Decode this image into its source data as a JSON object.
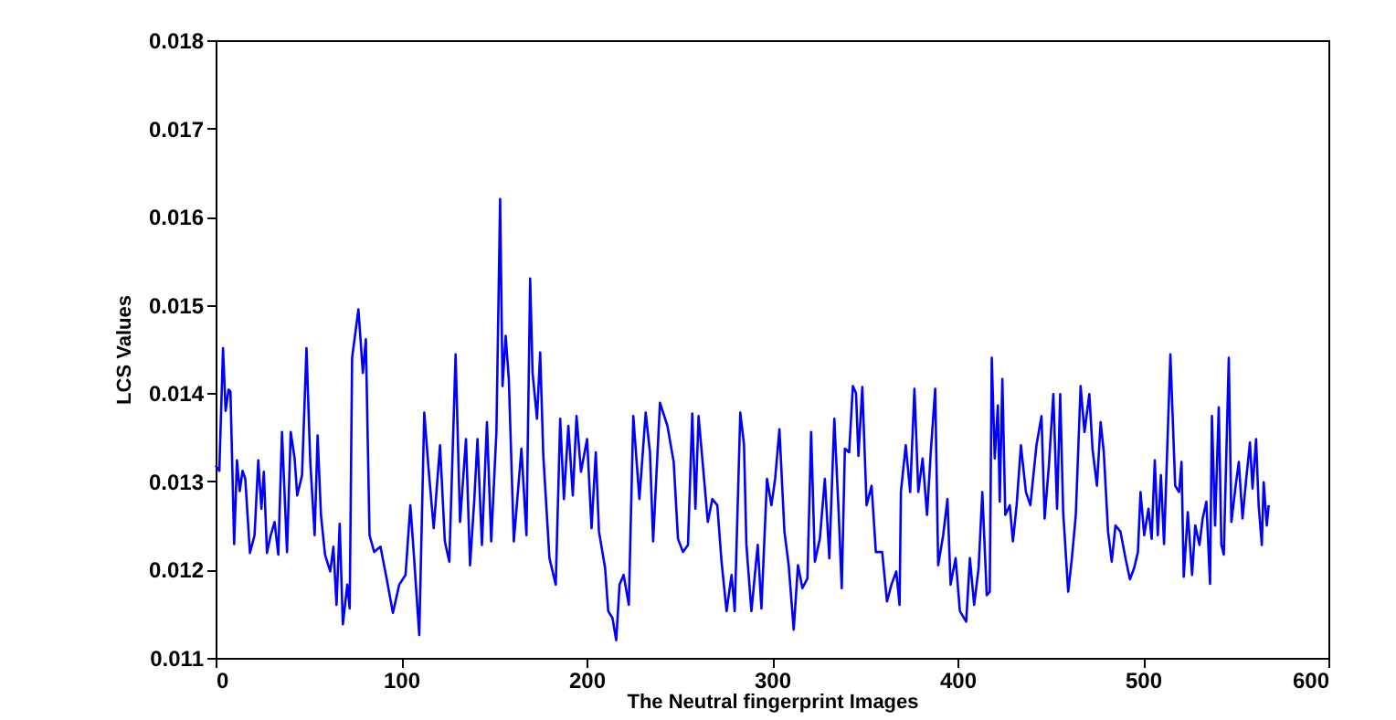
{
  "chart_data": {
    "type": "line",
    "xlabel": "The Neutral fingerprint Images",
    "ylabel": "LCS Values",
    "xlim": [
      0,
      600
    ],
    "xticks": [
      0,
      100,
      200,
      300,
      400,
      500,
      600
    ],
    "ylim": [
      0.011,
      0.018
    ],
    "yticks": [
      0.011,
      0.012,
      0.013,
      0.014,
      0.015,
      0.016,
      0.017,
      0.018
    ],
    "grid": false,
    "marker": "none",
    "line_style": "solid",
    "series": [
      {
        "color": "#0000ff",
        "x": [
          0,
          2,
          4,
          5.4,
          7,
          8,
          10,
          11.5,
          13,
          14.5,
          16,
          18.5,
          21,
          23,
          24.7,
          26,
          27.7,
          29.7,
          31.8,
          33.8,
          35.8,
          38.5,
          40.5,
          42.6,
          44,
          46.6,
          49,
          51,
          53.4,
          55,
          56.8,
          59,
          61.8,
          63.5,
          65.2,
          66.9,
          68.6,
          71,
          72.3,
          73.6,
          77,
          79.4,
          81,
          83,
          85.5,
          88.9,
          92.2,
          95.6,
          99,
          102.4,
          105,
          106.8,
          109.8,
          112.5,
          114.9,
          117.6,
          121,
          123.6,
          126,
          129.4,
          131.8,
          135,
          137.2,
          139.5,
          141.2,
          143.6,
          146.3,
          148.6,
          151.4,
          153.4,
          154.7,
          156.4,
          158.1,
          160.8,
          164.9,
          167.6,
          169.6,
          170.9,
          173.3,
          175,
          176.7,
          180,
          183.4,
          185.8,
          187.8,
          190.2,
          192.6,
          194.6,
          197,
          200.3,
          202.7,
          205,
          206.7,
          210,
          211.7,
          214,
          216,
          217.8,
          220,
          222.8,
          225.2,
          228.5,
          231.9,
          234.2,
          235.9,
          239.6,
          243.6,
          247,
          249.3,
          252,
          254.7,
          257,
          258.7,
          260.4,
          263,
          265.4,
          267.8,
          270.5,
          272.8,
          275.5,
          278.2,
          279.9,
          282.9,
          284.9,
          286.2,
          288.9,
          292.3,
          294.3,
          297.3,
          299.7,
          301.7,
          304,
          306.7,
          309,
          311.7,
          314,
          316.4,
          319.1,
          321.1,
          323.1,
          325.8,
          328.5,
          330.9,
          333.6,
          336,
          337.6,
          339.3,
          341.6,
          343.6,
          345.3,
          346.6,
          348.7,
          351,
          353.7,
          356,
          359.4,
          362,
          364.4,
          367,
          368.8,
          369.5,
          372.1,
          374.5,
          376.8,
          378.9,
          381.2,
          383.6,
          385.6,
          388,
          389.6,
          392.3,
          394.6,
          396.3,
          399,
          401.3,
          404.7,
          406.7,
          409,
          411.4,
          413.4,
          415.8,
          417.4,
          418.5,
          420.1,
          421.8,
          422.8,
          424.2,
          425.8,
          428.2,
          429.9,
          431.9,
          434.2,
          436.9,
          439.3,
          442.6,
          445.3,
          447,
          449.3,
          451.7,
          453.7,
          455.4,
          457,
          459.7,
          461.7,
          463.8,
          466.4,
          468.5,
          471.1,
          472.8,
          475.2,
          477.2,
          478.9,
          481.2,
          483.2,
          485.2,
          487.9,
          490.6,
          493,
          495.3,
          497.3,
          498.7,
          500.7,
          503,
          504.7,
          506.4,
          508,
          509.7,
          511.4,
          514.8,
          517.4,
          519.5,
          520.8,
          522,
          524.2,
          526.5,
          528.2,
          530.5,
          532.2,
          534.2,
          536.2,
          537.2,
          538.9,
          540.9,
          542.3,
          543.6,
          544.9,
          546.3,
          547.7,
          550,
          551.7,
          553.7,
          555.7,
          557.7,
          559.1,
          561,
          562.4,
          564.1,
          565.1,
          566.8,
          567.8
        ],
        "values": [
          0.01318,
          0.01312,
          0.01451,
          0.0138,
          0.01404,
          0.01402,
          0.01229,
          0.01324,
          0.01289,
          0.01312,
          0.01303,
          0.01219,
          0.01239,
          0.01324,
          0.01269,
          0.01311,
          0.01219,
          0.01239,
          0.01254,
          0.01217,
          0.01356,
          0.0122,
          0.01356,
          0.01326,
          0.01284,
          0.01307,
          0.01451,
          0.01324,
          0.01239,
          0.01352,
          0.01262,
          0.01217,
          0.01198,
          0.01226,
          0.0116,
          0.01252,
          0.01138,
          0.01183,
          0.01156,
          0.0144,
          0.01495,
          0.01423,
          0.01461,
          0.01239,
          0.0122,
          0.01226,
          0.0119,
          0.01151,
          0.01183,
          0.01194,
          0.01273,
          0.0122,
          0.01126,
          0.01378,
          0.01312,
          0.01247,
          0.01341,
          0.01232,
          0.01209,
          0.01444,
          0.01254,
          0.01348,
          0.01205,
          0.0128,
          0.01348,
          0.01228,
          0.01367,
          0.01232,
          0.01356,
          0.0162,
          0.01408,
          0.01465,
          0.01416,
          0.01232,
          0.01337,
          0.01239,
          0.0153,
          0.01423,
          0.01371,
          0.01446,
          0.01329,
          0.01213,
          0.01183,
          0.01371,
          0.0128,
          0.01363,
          0.01284,
          0.01374,
          0.01311,
          0.01348,
          0.01247,
          0.01333,
          0.01243,
          0.01202,
          0.01153,
          0.01145,
          0.0112,
          0.01183,
          0.01194,
          0.0116,
          0.01374,
          0.0128,
          0.01378,
          0.01333,
          0.01232,
          0.01389,
          0.01363,
          0.01322,
          0.01235,
          0.0122,
          0.01228,
          0.01377,
          0.01269,
          0.01374,
          0.01312,
          0.01254,
          0.0128,
          0.01273,
          0.01209,
          0.01153,
          0.01194,
          0.01153,
          0.01378,
          0.01342,
          0.01228,
          0.01153,
          0.01228,
          0.01156,
          0.01303,
          0.01273,
          0.01303,
          0.01359,
          0.01243,
          0.01205,
          0.01132,
          0.01205,
          0.01179,
          0.0119,
          0.01356,
          0.01209,
          0.01235,
          0.01303,
          0.01213,
          0.01371,
          0.01262,
          0.01179,
          0.01337,
          0.01333,
          0.01408,
          0.014,
          0.01329,
          0.01407,
          0.01273,
          0.01295,
          0.0122,
          0.0122,
          0.01164,
          0.01183,
          0.01198,
          0.0116,
          0.01288,
          0.01341,
          0.01288,
          0.01405,
          0.01288,
          0.01326,
          0.01262,
          0.01333,
          0.01405,
          0.01205,
          0.01239,
          0.0128,
          0.01183,
          0.01213,
          0.01153,
          0.01141,
          0.01213,
          0.0116,
          0.01202,
          0.01288,
          0.01171,
          0.01175,
          0.0144,
          0.01326,
          0.01386,
          0.01277,
          0.01416,
          0.01262,
          0.01273,
          0.01232,
          0.01273,
          0.01341,
          0.01288,
          0.01273,
          0.01341,
          0.01374,
          0.01258,
          0.01318,
          0.01399,
          0.01269,
          0.01399,
          0.01265,
          0.01175,
          0.01213,
          0.01262,
          0.01408,
          0.01356,
          0.01399,
          0.01337,
          0.01295,
          0.01367,
          0.01333,
          0.01243,
          0.01209,
          0.0125,
          0.01243,
          0.01213,
          0.01189,
          0.01202,
          0.0122,
          0.01288,
          0.01239,
          0.01269,
          0.01235,
          0.01324,
          0.01239,
          0.01307,
          0.01229,
          0.01444,
          0.01295,
          0.01288,
          0.01322,
          0.01192,
          0.01265,
          0.01194,
          0.0125,
          0.01228,
          0.01258,
          0.01277,
          0.01184,
          0.01374,
          0.0125,
          0.01384,
          0.01228,
          0.01217,
          0.01326,
          0.0144,
          0.01254,
          0.01295,
          0.01322,
          0.01258,
          0.01303,
          0.01344,
          0.01292,
          0.01348,
          0.01273,
          0.01228,
          0.01299,
          0.0125,
          0.01273
        ]
      }
    ]
  }
}
